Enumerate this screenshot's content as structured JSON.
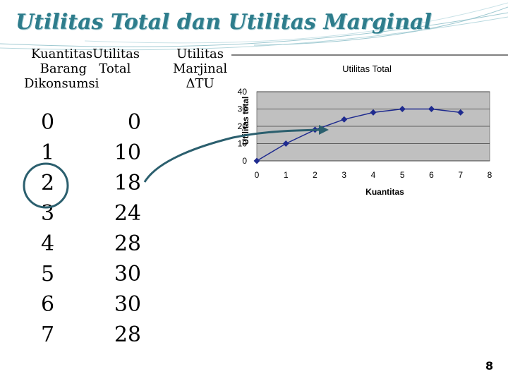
{
  "slide": {
    "title": "Utilitas Total dan Utilitas Marginal",
    "page_number": "8",
    "accent_color": "#2e7d8c"
  },
  "table": {
    "headers": {
      "quantity": [
        "Kuantitas",
        "Barang",
        "Dikonsumsi"
      ],
      "total": [
        "Utilitas",
        "Total"
      ],
      "marginal": [
        "Utilitas",
        "Marjinal",
        "ΔTU"
      ]
    },
    "quantity_values": [
      "0",
      "1",
      "2",
      "3",
      "4",
      "5",
      "6",
      "7"
    ],
    "total_values": [
      "0",
      "10",
      "18",
      "24",
      "28",
      "30",
      "30",
      "28"
    ]
  },
  "chart_data": {
    "type": "line",
    "title": "Utilitas Total",
    "xlabel": "Kuantitas",
    "ylabel": "Utilitas total",
    "x": [
      0,
      1,
      2,
      3,
      4,
      5,
      6,
      7
    ],
    "series": [
      {
        "values": [
          0,
          10,
          18,
          24,
          28,
          30,
          30,
          28
        ]
      }
    ],
    "xlim": [
      0,
      8
    ],
    "ylim": [
      0,
      40
    ],
    "xticks": [
      "0",
      "1",
      "2",
      "3",
      "4",
      "5",
      "6",
      "7",
      "8"
    ],
    "yticks": [
      "0",
      "10",
      "20",
      "30",
      "40"
    ],
    "grid": true,
    "plot_background": "#c0c0c0",
    "line_color": "#1f2b8f"
  }
}
